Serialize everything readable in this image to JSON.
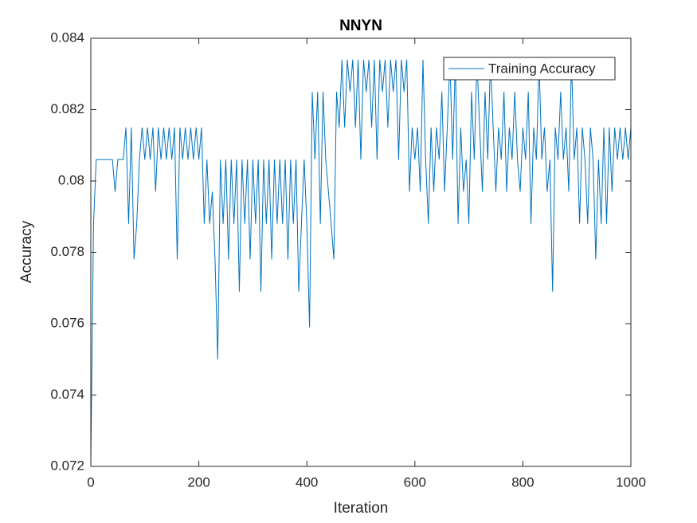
{
  "chart_data": {
    "type": "line",
    "title": "NNYN",
    "xlabel": "Iteration",
    "ylabel": "Accuracy",
    "xlim": [
      0,
      1000
    ],
    "ylim": [
      0.072,
      0.084
    ],
    "xticks": [
      0,
      200,
      400,
      600,
      800,
      1000
    ],
    "yticks": [
      0.072,
      0.074,
      0.076,
      0.078,
      0.08,
      0.082,
      0.084
    ],
    "grid": false,
    "legend_location": "northeast",
    "x": [
      0,
      5,
      10,
      15,
      20,
      25,
      30,
      35,
      40,
      45,
      50,
      55,
      60,
      65,
      70,
      75,
      80,
      85,
      90,
      95,
      100,
      105,
      110,
      115,
      120,
      125,
      130,
      135,
      140,
      145,
      150,
      155,
      160,
      165,
      170,
      175,
      180,
      185,
      190,
      195,
      200,
      205,
      210,
      215,
      220,
      225,
      230,
      235,
      240,
      245,
      250,
      255,
      260,
      265,
      270,
      275,
      280,
      285,
      290,
      295,
      300,
      305,
      310,
      315,
      320,
      325,
      330,
      335,
      340,
      345,
      350,
      355,
      360,
      365,
      370,
      375,
      380,
      385,
      390,
      395,
      400,
      405,
      410,
      415,
      420,
      425,
      430,
      435,
      440,
      445,
      450,
      455,
      460,
      465,
      470,
      475,
      480,
      485,
      490,
      495,
      500,
      505,
      510,
      515,
      520,
      525,
      530,
      535,
      540,
      545,
      550,
      555,
      560,
      565,
      570,
      575,
      580,
      585,
      590,
      595,
      600,
      605,
      610,
      615,
      620,
      625,
      630,
      635,
      640,
      645,
      650,
      655,
      660,
      665,
      670,
      675,
      680,
      685,
      690,
      695,
      700,
      705,
      710,
      715,
      720,
      725,
      730,
      735,
      740,
      745,
      750,
      755,
      760,
      765,
      770,
      775,
      780,
      785,
      790,
      795,
      800,
      805,
      810,
      815,
      820,
      825,
      830,
      835,
      840,
      845,
      850,
      855,
      860,
      865,
      870,
      875,
      880,
      885,
      890,
      895,
      900,
      905,
      910,
      915,
      920,
      925,
      930,
      935,
      940,
      945,
      950,
      955,
      960,
      965,
      970,
      975,
      980,
      985,
      990,
      995,
      1000
    ],
    "series": [
      {
        "name": "Training Accuracy",
        "color": "#0072bd",
        "values": [
          0.072,
          0.0788,
          0.0806,
          0.0806,
          0.0806,
          0.0806,
          0.0806,
          0.0806,
          0.0806,
          0.0797,
          0.0806,
          0.0806,
          0.0806,
          0.0815,
          0.0788,
          0.0815,
          0.0778,
          0.0788,
          0.0806,
          0.0815,
          0.0806,
          0.0815,
          0.0806,
          0.0815,
          0.0797,
          0.0815,
          0.0806,
          0.0815,
          0.0806,
          0.0815,
          0.0806,
          0.0815,
          0.0778,
          0.0815,
          0.0806,
          0.0815,
          0.0806,
          0.0815,
          0.0806,
          0.0815,
          0.0806,
          0.0815,
          0.0788,
          0.0806,
          0.0788,
          0.0797,
          0.0778,
          0.075,
          0.0806,
          0.0788,
          0.0806,
          0.0778,
          0.0806,
          0.0788,
          0.0806,
          0.0769,
          0.0806,
          0.0788,
          0.0806,
          0.0778,
          0.0806,
          0.0788,
          0.0806,
          0.0769,
          0.0806,
          0.0788,
          0.0806,
          0.0778,
          0.0806,
          0.0788,
          0.0806,
          0.0788,
          0.0806,
          0.0778,
          0.0806,
          0.0788,
          0.0806,
          0.0769,
          0.0788,
          0.0806,
          0.0788,
          0.0759,
          0.0825,
          0.0806,
          0.0825,
          0.0788,
          0.0825,
          0.0806,
          0.0797,
          0.0788,
          0.0778,
          0.0825,
          0.0815,
          0.0834,
          0.0815,
          0.0834,
          0.0825,
          0.0834,
          0.0815,
          0.0834,
          0.0806,
          0.0834,
          0.0825,
          0.0834,
          0.0815,
          0.0834,
          0.0806,
          0.0834,
          0.0825,
          0.0834,
          0.0815,
          0.0834,
          0.0825,
          0.0834,
          0.0806,
          0.0834,
          0.0825,
          0.0834,
          0.0797,
          0.0815,
          0.0806,
          0.0815,
          0.0797,
          0.0834,
          0.0806,
          0.0788,
          0.0815,
          0.0797,
          0.0815,
          0.0806,
          0.0825,
          0.0797,
          0.0815,
          0.0834,
          0.0806,
          0.0834,
          0.0788,
          0.0815,
          0.0797,
          0.0806,
          0.0788,
          0.0825,
          0.0806,
          0.0834,
          0.0815,
          0.0797,
          0.0825,
          0.0806,
          0.0834,
          0.0815,
          0.0797,
          0.0815,
          0.0806,
          0.0825,
          0.0797,
          0.0815,
          0.0806,
          0.0825,
          0.0806,
          0.0797,
          0.0815,
          0.0806,
          0.0825,
          0.0788,
          0.0815,
          0.0806,
          0.0834,
          0.0806,
          0.0815,
          0.0797,
          0.0806,
          0.0769,
          0.0815,
          0.0806,
          0.0825,
          0.0806,
          0.0815,
          0.0797,
          0.0834,
          0.0806,
          0.0815,
          0.0788,
          0.0815,
          0.0806,
          0.0788,
          0.0815,
          0.0806,
          0.0778,
          0.0806,
          0.0788,
          0.0815,
          0.0788,
          0.0815,
          0.0797,
          0.0815,
          0.0806,
          0.0815,
          0.0806,
          0.0815,
          0.0806,
          0.0815
        ]
      }
    ]
  }
}
